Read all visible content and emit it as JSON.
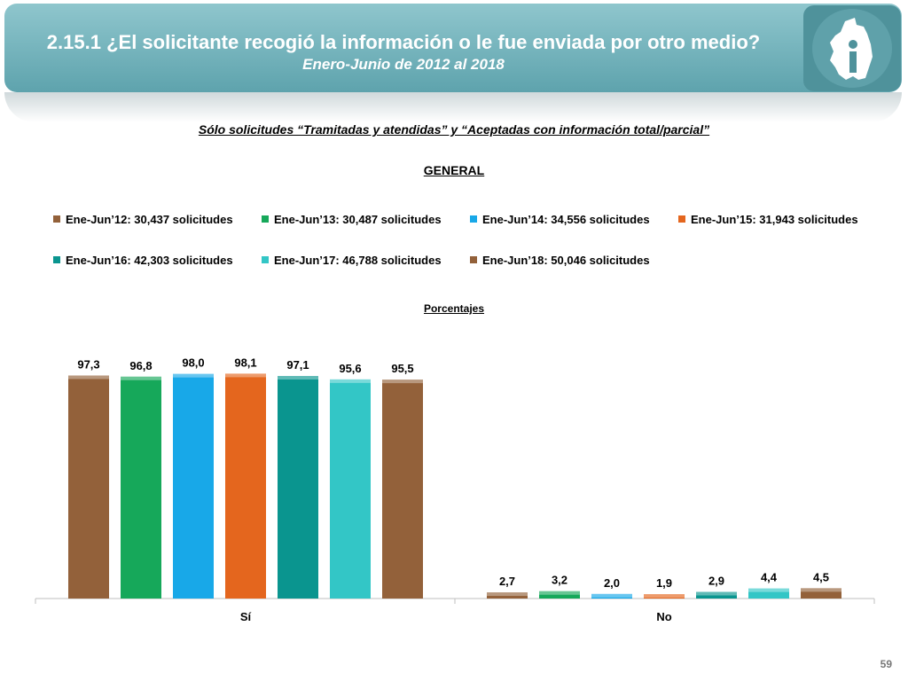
{
  "header": {
    "title": "2.15.1 ¿El solicitante recogió la información o le fue enviada por otro medio?",
    "subtitle": "Enero-Junio de 2012 al 2018"
  },
  "note": "Sólo solicitudes “Tramitadas y atendidas” y “Aceptadas con información total/parcial”",
  "section_title": "GENERAL",
  "units_label": "Porcentajes",
  "page_number": "59",
  "logo": {
    "icon": "cdmx-map-info-logo-icon",
    "color": "#4f929b"
  },
  "colors": {
    "banner": "#6aaab3",
    "series": [
      "#93613a",
      "#16a85a",
      "#18a8e8",
      "#e4661e",
      "#0a958f",
      "#33c6c6",
      "#93613a"
    ]
  },
  "chart_data": {
    "type": "bar",
    "title": "GENERAL",
    "ylabel": "Porcentajes",
    "categories": [
      "Sí",
      "No"
    ],
    "ylim": [
      0,
      100
    ],
    "grid": false,
    "legend_position": "top",
    "series": [
      {
        "name": "Ene-Jun’12: 30,437 solicitudes",
        "values": [
          97.3,
          2.7
        ],
        "labels": [
          "97,3",
          "2,7"
        ]
      },
      {
        "name": "Ene-Jun’13: 30,487 solicitudes",
        "values": [
          96.8,
          3.2
        ],
        "labels": [
          "96,8",
          "3,2"
        ]
      },
      {
        "name": "Ene-Jun’14: 34,556 solicitudes",
        "values": [
          98.0,
          2.0
        ],
        "labels": [
          "98,0",
          "2,0"
        ]
      },
      {
        "name": "Ene-Jun’15: 31,943 solicitudes",
        "values": [
          98.1,
          1.9
        ],
        "labels": [
          "98,1",
          "1,9"
        ]
      },
      {
        "name": "Ene-Jun’16: 42,303 solicitudes",
        "values": [
          97.1,
          2.9
        ],
        "labels": [
          "97,1",
          "2,9"
        ]
      },
      {
        "name": "Ene-Jun’17: 46,788 solicitudes",
        "values": [
          95.6,
          4.4
        ],
        "labels": [
          "95,6",
          "4,4"
        ]
      },
      {
        "name": "Ene-Jun’18: 50,046 solicitudes",
        "values": [
          95.5,
          4.5
        ],
        "labels": [
          "95,5",
          "4,5"
        ]
      }
    ]
  }
}
